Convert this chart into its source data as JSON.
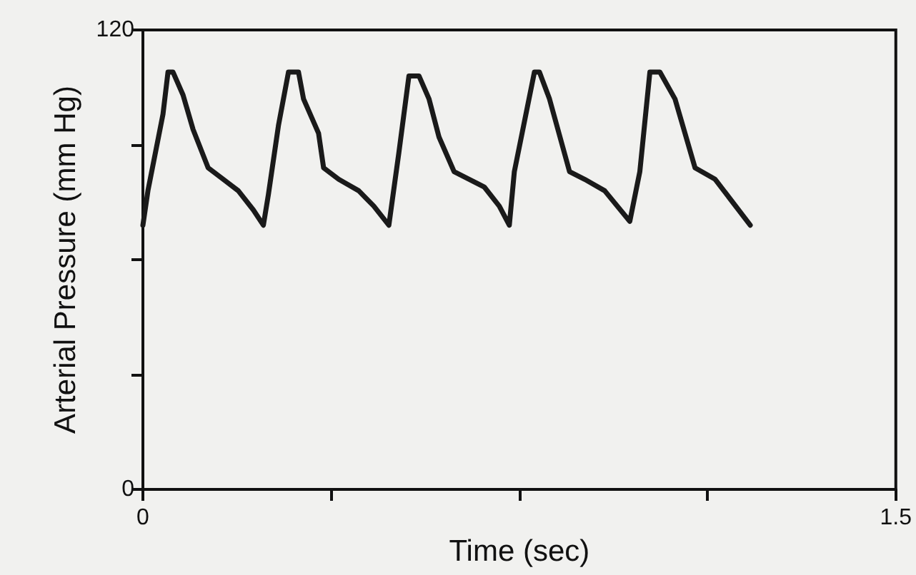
{
  "chart_data": {
    "type": "line",
    "xlabel": "Time (sec)",
    "ylabel": "Arterial Pressure (mm Hg)",
    "x": [
      0,
      0.01,
      0.04,
      0.05,
      0.06,
      0.08,
      0.1,
      0.13,
      0.16,
      0.19,
      0.22,
      0.24,
      0.25,
      0.27,
      0.29,
      0.31,
      0.32,
      0.35,
      0.36,
      0.39,
      0.43,
      0.46,
      0.49,
      0.51,
      0.53,
      0.55,
      0.57,
      0.59,
      0.62,
      0.65,
      0.68,
      0.71,
      0.73,
      0.74,
      0.78,
      0.79,
      0.81,
      0.85,
      0.88,
      0.92,
      0.97,
      0.99,
      1.01,
      1.03,
      1.06,
      1.1,
      1.14,
      1.21
    ],
    "series": [
      {
        "color": "#1a1a1a",
        "values": [
          69,
          78,
          98,
          109,
          109,
          103,
          94,
          84,
          81,
          78,
          73,
          69,
          77,
          95,
          109,
          109,
          102,
          93,
          84,
          81,
          78,
          74,
          69,
          88,
          108,
          108,
          102,
          92,
          83,
          81,
          79,
          74,
          69,
          83,
          109,
          109,
          102,
          83,
          81,
          78,
          70,
          83,
          109,
          109,
          102,
          84,
          81,
          69
        ]
      }
    ],
    "xlim": [
      0,
      1.5
    ],
    "xticks": [
      0,
      {
        "value": 0.375,
        "label": null
      },
      {
        "value": 0.75,
        "label": null
      },
      {
        "value": 1.125,
        "label": null
      },
      1.5
    ],
    "ylim": [
      0,
      120
    ],
    "yticks": [
      0,
      {
        "value": 30,
        "label": null
      },
      {
        "value": 60,
        "label": null
      },
      {
        "value": 90,
        "label": null
      },
      120
    ],
    "grid": false,
    "marker": "none",
    "line_style": "solid"
  }
}
